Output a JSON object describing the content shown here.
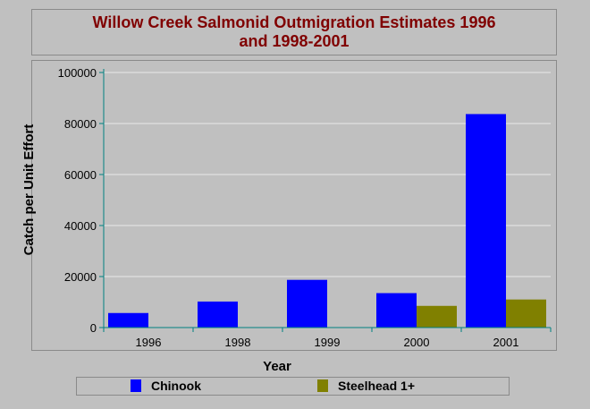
{
  "chart_data": {
    "type": "bar",
    "title_line1": "Willow Creek Salmonid Outmigration Estimates 1996",
    "title_line2": "and 1998-2001",
    "xlabel": "Year",
    "ylabel": "Catch per Unit Effort",
    "categories": [
      "1996",
      "1998",
      "1999",
      "2000",
      "2001"
    ],
    "ylim": [
      0,
      100000
    ],
    "yticks": [
      0,
      20000,
      40000,
      60000,
      80000,
      100000
    ],
    "grid": true,
    "legend_position": "bottom",
    "series": [
      {
        "name": "Chinook",
        "color": "#0000ff",
        "values": [
          5700,
          10200,
          18700,
          13500,
          83700
        ]
      },
      {
        "name": "Steelhead 1+",
        "color": "#808000",
        "values": [
          0,
          0,
          0,
          8500,
          11000
        ]
      }
    ]
  }
}
